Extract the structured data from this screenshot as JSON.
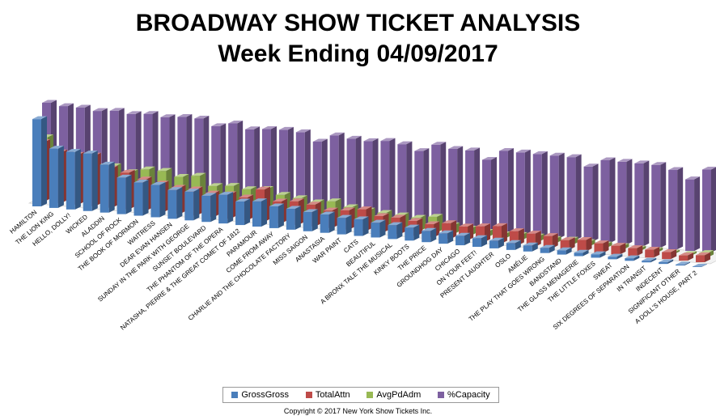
{
  "chart_data": {
    "type": "bar",
    "title": "BROADWAY SHOW TICKET ANALYSIS",
    "subtitle": "Week Ending 04/09/2017",
    "categories": [
      "HAMILTON",
      "THE LION KING",
      "HELLO, DOLLY!",
      "WICKED",
      "ALADDIN",
      "SCHOOL OF ROCK",
      "THE BOOK OF MORMON",
      "WAITRESS",
      "DEAR EVAN HANSEN",
      "SUNDAY IN THE PARK WITH GEORGE",
      "SUNSET BOULEVARD",
      "THE PHANTOM OF THE OPERA",
      "NATASHA, PIERRE & THE GREAT COMET OF 1812",
      "PARAMOUR",
      "COME FROM AWAY",
      "CHARLIE AND THE CHOCOLATE FACTORY",
      "MISS SAIGON",
      "ANASTASIA",
      "WAR PAINT",
      "CATS",
      "BEAUTIFUL",
      "A BRONX TALE THE MUSICAL",
      "KINKY BOOTS",
      "THE PRICE",
      "GROUNDHOG DAY",
      "CHICAGO",
      "ON YOUR FEET!",
      "PRESENT LAUGHTER",
      "OSLO",
      "AMÉLIE",
      "THE PLAY THAT GOES WRONG",
      "BANDSTAND",
      "THE GLASS MENAGERIE",
      "THE LITTLE FOXES",
      "SWEAT",
      "SIX DEGREES OF SEPARATION",
      "IN TRANSIT",
      "INDECENT",
      "SIGNIFICANT OTHER",
      "A DOLL'S HOUSE, PART 2"
    ],
    "series": [
      {
        "name": "GrossGross",
        "color": "#4a7ebb",
        "values": [
          100,
          68,
          66,
          66,
          55,
          42,
          38,
          37,
          33,
          33,
          30,
          33,
          27,
          29,
          25,
          24,
          22,
          21,
          19,
          19,
          17,
          16,
          15,
          13,
          12,
          11,
          10,
          9,
          8,
          7,
          6,
          5,
          4,
          4,
          3,
          3,
          2,
          2,
          1,
          0.5
        ]
      },
      {
        "name": "TotalAttn",
        "color": "#be4b48",
        "values": [
          68,
          58,
          57,
          58,
          45,
          42,
          36,
          33,
          30,
          30,
          27,
          28,
          26,
          37,
          25,
          27,
          25,
          20,
          22,
          25,
          19,
          19,
          17,
          15,
          18,
          16,
          18,
          20,
          16,
          15,
          14,
          11,
          13,
          11,
          10,
          9,
          9,
          8,
          6,
          8
        ]
      },
      {
        "name": "AvgPdAdm",
        "color": "#98b954",
        "values": [
          68,
          48,
          50,
          40,
          42,
          37,
          42,
          42,
          37,
          40,
          30,
          32,
          30,
          32,
          27,
          25,
          22,
          25,
          20,
          18,
          17,
          16,
          15,
          18,
          10,
          8,
          6,
          5,
          6,
          6,
          5,
          6,
          5,
          4,
          4,
          3,
          3,
          2,
          2,
          5
        ]
      },
      {
        "name": "%Capacity",
        "color": "#7d60a0",
        "values": [
          102,
          100,
          100,
          98,
          100,
          98,
          100,
          98,
          100,
          100,
          93,
          98,
          93,
          95,
          96,
          95,
          86,
          95,
          93,
          92,
          94,
          92,
          86,
          95,
          92,
          92,
          83,
          95,
          95,
          95,
          95,
          95,
          86,
          95,
          95,
          95,
          95,
          91,
          82,
          95
        ]
      }
    ],
    "legend_position": "bottom",
    "copyright": "Copyright © 2017 New York Show Tickets Inc."
  }
}
